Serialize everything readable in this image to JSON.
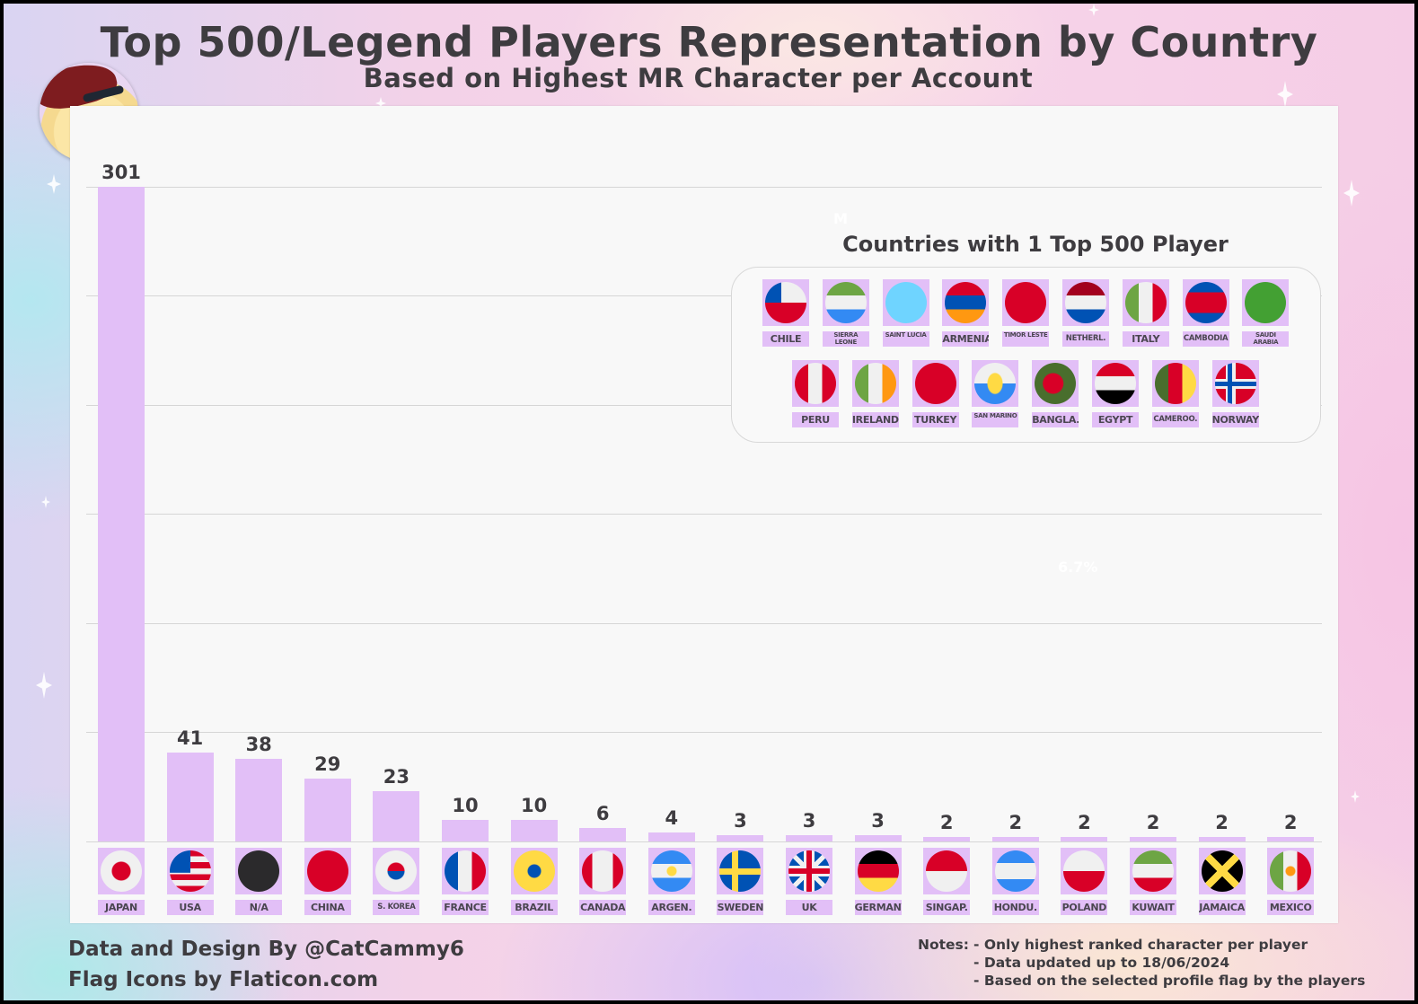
{
  "header": {
    "title": "Top 500/Legend Players Representation by Country",
    "subtitle": "Based on Highest MR Character per Account"
  },
  "colors": {
    "bar": "#e2bff7",
    "text": "#3e3c40",
    "panel": "#f8f8f8",
    "gridline": "#d6d6d6"
  },
  "chart_data": {
    "type": "bar",
    "title": "Top 500/Legend Players Representation by Country",
    "subtitle": "Based on Highest MR Character per Account",
    "xlabel": "",
    "ylabel": "",
    "ylim": [
      0,
      301
    ],
    "grid": true,
    "legend": null,
    "categories": [
      "JAPAN",
      "USA",
      "N/A",
      "CHINA",
      "S. KOREA",
      "FRANCE",
      "BRAZIL",
      "CANADA",
      "ARGEN.",
      "SWEDEN",
      "UK",
      "GERMANY",
      "SINGAP.",
      "HONDU.",
      "POLAND",
      "KUWAIT",
      "JAMAICA",
      "MEXICO"
    ],
    "values": [
      301,
      41,
      38,
      29,
      23,
      10,
      10,
      6,
      4,
      3,
      3,
      3,
      2,
      2,
      2,
      2,
      2,
      2
    ],
    "annotations": [
      "Countries with 1 Top 500 Player"
    ],
    "inset": {
      "title": "Countries with 1 Top 500 Player",
      "value": 1,
      "countries": [
        "CHILE",
        "SIERRA LEONE",
        "SAINT LUCIA",
        "ARMENIA",
        "TIMOR LESTE",
        "NETHERL.",
        "ITALY",
        "CAMBODIA",
        "SAUDI ARABIA",
        "PERU",
        "IRELAND",
        "TURKEY",
        "SAN MARINO",
        "BANGLA.",
        "EGYPT",
        "CAMEROO.",
        "NORWAY"
      ]
    }
  },
  "bars": [
    {
      "label": "JAPAN",
      "value": "301",
      "flag": "japan"
    },
    {
      "label": "USA",
      "value": "41",
      "flag": "usa"
    },
    {
      "label": "N/A",
      "value": "38",
      "flag": "na"
    },
    {
      "label": "CHINA",
      "value": "29",
      "flag": "china"
    },
    {
      "label": "S. KOREA",
      "value": "23",
      "flag": "skorea"
    },
    {
      "label": "FRANCE",
      "value": "10",
      "flag": "france"
    },
    {
      "label": "BRAZIL",
      "value": "10",
      "flag": "brazil"
    },
    {
      "label": "CANADA",
      "value": "6",
      "flag": "canada"
    },
    {
      "label": "ARGEN.",
      "value": "4",
      "flag": "argentina"
    },
    {
      "label": "SWEDEN",
      "value": "3",
      "flag": "sweden"
    },
    {
      "label": "UK",
      "value": "3",
      "flag": "uk"
    },
    {
      "label": "GERMANY",
      "value": "3",
      "flag": "germany"
    },
    {
      "label": "SINGAP.",
      "value": "2",
      "flag": "singapore"
    },
    {
      "label": "HONDU.",
      "value": "2",
      "flag": "honduras"
    },
    {
      "label": "POLAND",
      "value": "2",
      "flag": "poland"
    },
    {
      "label": "KUWAIT",
      "value": "2",
      "flag": "kuwait"
    },
    {
      "label": "JAMAICA",
      "value": "2",
      "flag": "jamaica"
    },
    {
      "label": "MEXICO",
      "value": "2",
      "flag": "mexico"
    }
  ],
  "inset": {
    "title": "Countries with 1 Top 500 Player",
    "row1": [
      {
        "label": "CHILE",
        "flag": "chile"
      },
      {
        "label": "SIERRA LEONE",
        "flag": "sierra-leone"
      },
      {
        "label": "SAINT LUCIA",
        "flag": "saint-lucia"
      },
      {
        "label": "ARMENIA",
        "flag": "armenia"
      },
      {
        "label": "TIMOR LESTE",
        "flag": "timor-leste"
      },
      {
        "label": "NETHERL.",
        "flag": "netherlands"
      },
      {
        "label": "ITALY",
        "flag": "italy"
      },
      {
        "label": "CAMBODIA",
        "flag": "cambodia"
      },
      {
        "label": "SAUDI ARABIA",
        "flag": "saudi-arabia"
      }
    ],
    "row2": [
      {
        "label": "PERU",
        "flag": "peru"
      },
      {
        "label": "IRELAND",
        "flag": "ireland"
      },
      {
        "label": "TURKEY",
        "flag": "turkey"
      },
      {
        "label": "SAN MARINO",
        "flag": "san-marino"
      },
      {
        "label": "BANGLA.",
        "flag": "bangladesh"
      },
      {
        "label": "EGYPT",
        "flag": "egypt"
      },
      {
        "label": "CAMEROO.",
        "flag": "cameroon"
      },
      {
        "label": "NORWAY",
        "flag": "norway"
      }
    ]
  },
  "watermarks": {
    "mark1": "M",
    "mark2": "6.7%"
  },
  "footer": {
    "credit_line1": "Data and Design By @CatCammy6",
    "credit_line2": "Flag Icons by Flaticon.com",
    "notes_label": "Notes:",
    "notes": [
      "- Only highest ranked character per player",
      "- Data updated up to 18/06/2024",
      "- Based on the selected profile flag by the players"
    ]
  }
}
